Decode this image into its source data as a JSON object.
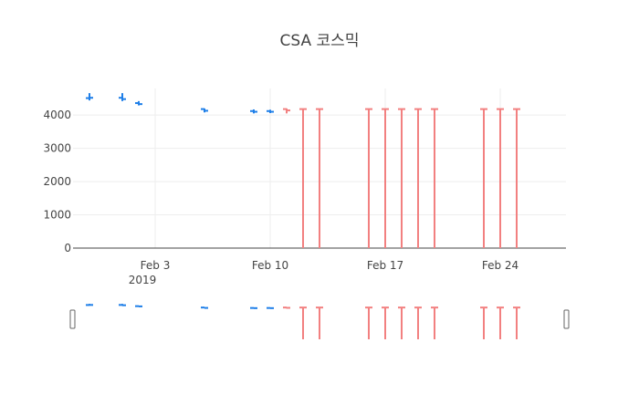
{
  "chart_data": {
    "type": "ohlc",
    "title": "CSA 코스믹",
    "xlabel": "",
    "ylabel": "",
    "x_range": [
      "2019-01-29",
      "2019-02-28"
    ],
    "y_range": [
      0,
      4800
    ],
    "yticks": [
      0,
      1000,
      2000,
      3000,
      4000
    ],
    "ytick_labels": [
      "0",
      "1000",
      "2000",
      "3000",
      "4000"
    ],
    "xticks": [
      "2019-02-03",
      "2019-02-10",
      "2019-02-17",
      "2019-02-24"
    ],
    "xtick_labels": [
      "Feb 3",
      "Feb 10",
      "Feb 17",
      "Feb 24"
    ],
    "xtick_year_label": "2019",
    "grid": true,
    "legend": "none",
    "increasing_color": "#3D9970",
    "decreasing_color": "#FF4136",
    "rangeslider": true,
    "series": [
      {
        "color": "#1f7fe8",
        "points": [
          {
            "date": "2019-01-30",
            "open": 4510,
            "high": 4660,
            "low": 4440,
            "close": 4520
          },
          {
            "date": "2019-02-01",
            "open": 4520,
            "high": 4660,
            "low": 4420,
            "close": 4480
          },
          {
            "date": "2019-02-02",
            "open": 4360,
            "high": 4420,
            "low": 4290,
            "close": 4330
          },
          {
            "date": "2019-02-06",
            "open": 4180,
            "high": 4200,
            "low": 4080,
            "close": 4130
          },
          {
            "date": "2019-02-09",
            "open": 4120,
            "high": 4170,
            "low": 4050,
            "close": 4100
          },
          {
            "date": "2019-02-10",
            "open": 4120,
            "high": 4160,
            "low": 4060,
            "close": 4100
          }
        ]
      },
      {
        "color": "#f28080",
        "points": [
          {
            "date": "2019-02-11",
            "open": 4180,
            "high": 4200,
            "low": 4050,
            "close": 4140
          },
          {
            "date": "2019-02-12",
            "open": 4180,
            "high": 4180,
            "low": 0,
            "close": 4180
          },
          {
            "date": "2019-02-13",
            "open": 4180,
            "high": 4180,
            "low": 0,
            "close": 4180
          },
          {
            "date": "2019-02-16",
            "open": 4180,
            "high": 4180,
            "low": 0,
            "close": 4180
          },
          {
            "date": "2019-02-17",
            "open": 4180,
            "high": 4180,
            "low": 0,
            "close": 4180
          },
          {
            "date": "2019-02-18",
            "open": 4180,
            "high": 4180,
            "low": 0,
            "close": 4180
          },
          {
            "date": "2019-02-19",
            "open": 4180,
            "high": 4180,
            "low": 0,
            "close": 4180
          },
          {
            "date": "2019-02-20",
            "open": 4180,
            "high": 4180,
            "low": 0,
            "close": 4180
          },
          {
            "date": "2019-02-23",
            "open": 4180,
            "high": 4180,
            "low": 0,
            "close": 4180
          },
          {
            "date": "2019-02-24",
            "open": 4180,
            "high": 4180,
            "low": 0,
            "close": 4180
          },
          {
            "date": "2019-02-25",
            "open": 4180,
            "high": 4180,
            "low": 0,
            "close": 4180
          }
        ]
      }
    ]
  }
}
